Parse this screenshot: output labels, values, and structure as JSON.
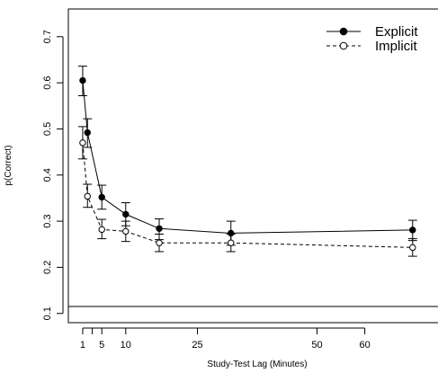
{
  "chart_data": {
    "type": "line",
    "xlabel": "Study-Test Lag (Minutes)",
    "ylabel": "p(Correct)",
    "xlim": [
      -2,
      77
    ],
    "ylim": [
      0.08,
      0.76
    ],
    "x_ticks": [
      1,
      5,
      10,
      25,
      50,
      60
    ],
    "x_tick_labels": [
      "1",
      "5",
      "10",
      "25",
      "50",
      "60"
    ],
    "x_minor_ticks": [
      3
    ],
    "y_ticks": [
      0.1,
      0.2,
      0.3,
      0.4,
      0.5,
      0.6,
      0.7
    ],
    "y_tick_labels": [
      "0.1",
      "0.2",
      "0.3",
      "0.4",
      "0.5",
      "0.6",
      "0.7"
    ],
    "reference_line": {
      "y": 0.115
    },
    "grid": false,
    "legend_position": "top-right",
    "series": [
      {
        "name": "Explicit",
        "style": "solid",
        "marker": "filled-circle",
        "color": "#000000",
        "x": [
          1,
          2,
          5,
          10,
          17,
          32,
          70
        ],
        "y": [
          0.605,
          0.492,
          0.352,
          0.315,
          0.284,
          0.274,
          0.281
        ],
        "err_low": [
          0.572,
          0.46,
          0.326,
          0.29,
          0.26,
          0.248,
          0.258
        ],
        "err_high": [
          0.636,
          0.522,
          0.378,
          0.34,
          0.305,
          0.3,
          0.302
        ]
      },
      {
        "name": "Implicit",
        "style": "dashed",
        "marker": "open-circle",
        "color": "#000000",
        "x": [
          1,
          2,
          5,
          10,
          17,
          32,
          70
        ],
        "y": [
          0.47,
          0.354,
          0.282,
          0.278,
          0.253,
          0.253,
          0.243
        ],
        "err_low": [
          0.435,
          0.33,
          0.262,
          0.256,
          0.234,
          0.234,
          0.224
        ],
        "err_high": [
          0.505,
          0.38,
          0.304,
          0.3,
          0.272,
          0.272,
          0.262
        ]
      }
    ]
  }
}
